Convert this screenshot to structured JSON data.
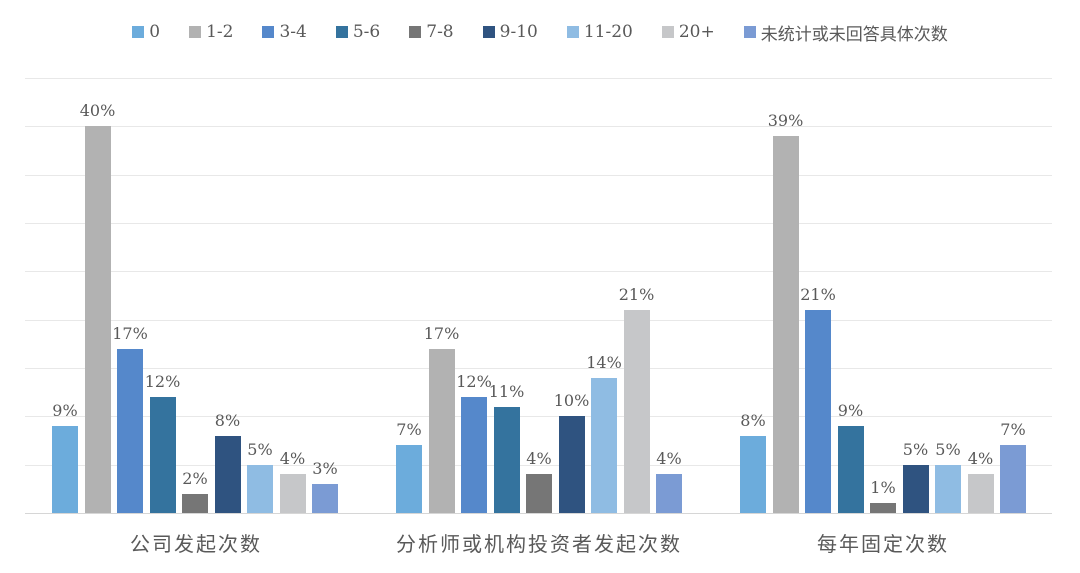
{
  "chart_data": {
    "type": "bar",
    "title": "",
    "xlabel": "",
    "ylabel": "",
    "ylim": [
      0,
      45
    ],
    "gridline_step": 5,
    "grid": true,
    "legend_position": "top",
    "value_suffix": "%",
    "categories": [
      "公司发起次数",
      "分析师或机构投资者发起次数",
      "每年固定次数"
    ],
    "series": [
      {
        "name": "0",
        "color": "#6cacdc",
        "values": [
          9,
          7,
          8
        ]
      },
      {
        "name": "1-2",
        "color": "#b2b2b2",
        "values": [
          40,
          17,
          39
        ]
      },
      {
        "name": "3-4",
        "color": "#5588cb",
        "values": [
          17,
          12,
          21
        ]
      },
      {
        "name": "5-6",
        "color": "#34739e",
        "values": [
          12,
          11,
          9
        ]
      },
      {
        "name": "7-8",
        "color": "#767676",
        "values": [
          2,
          4,
          1
        ]
      },
      {
        "name": "9-10",
        "color": "#2f5380",
        "values": [
          8,
          10,
          5
        ]
      },
      {
        "name": "11-20",
        "color": "#8fbce3",
        "values": [
          5,
          14,
          5
        ]
      },
      {
        "name": "20+",
        "color": "#c6c7c9",
        "values": [
          4,
          21,
          4
        ]
      },
      {
        "name": "未统计或未回答具体次数",
        "color": "#7b9bd4",
        "values": [
          3,
          4,
          7
        ]
      }
    ],
    "text_color": "#595959",
    "gridline_color": "#e8e8e8",
    "baseline_color": "#d6d6d6"
  }
}
